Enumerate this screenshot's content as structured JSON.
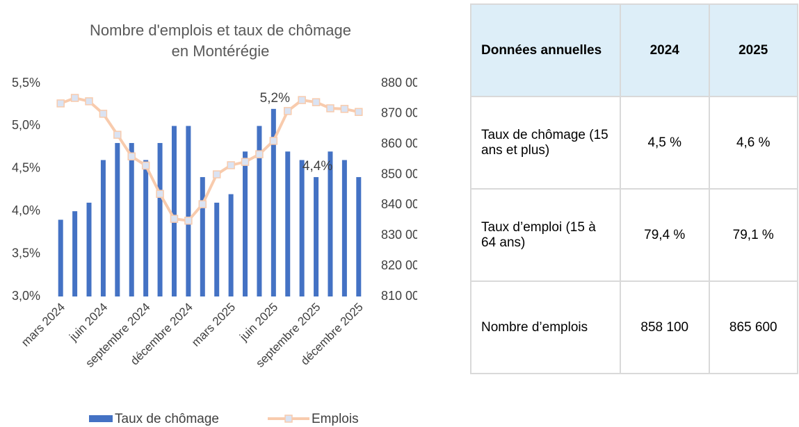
{
  "chart_data": {
    "type": "bar_line",
    "title": [
      "Nombre d'emplois et taux de chômage",
      "en Montérégie"
    ],
    "categories": [
      "mars 2024",
      null,
      null,
      "juin 2024",
      null,
      null,
      "septembre 2024",
      null,
      null,
      "décembre 2024",
      null,
      null,
      "mars 2025",
      null,
      null,
      "juin 2025",
      null,
      null,
      "septembre 2025",
      null,
      null,
      "décembre 2025"
    ],
    "series": [
      {
        "name": "Taux de chômage",
        "type": "bar",
        "color": "#4472c4",
        "values": [
          3.9,
          4.0,
          4.1,
          4.6,
          4.8,
          4.8,
          4.6,
          4.8,
          5.0,
          5.0,
          4.4,
          4.1,
          4.2,
          4.7,
          5.0,
          5.2,
          4.7,
          4.6,
          4.4,
          4.7,
          4.6,
          4.4
        ],
        "value_labels": [
          null,
          null,
          null,
          null,
          null,
          null,
          null,
          null,
          null,
          null,
          null,
          null,
          null,
          null,
          null,
          "5,2%",
          null,
          null,
          "4,4%",
          null,
          null,
          null
        ]
      },
      {
        "name": "Emplois",
        "type": "line",
        "axis": "y2",
        "color": "#f8cbad",
        "marker_color": "#dae3f3",
        "values": [
          873400,
          875200,
          874100,
          870000,
          863100,
          856000,
          853000,
          843700,
          835500,
          834900,
          840300,
          850100,
          853100,
          854200,
          856700,
          861100,
          870900,
          874500,
          873800,
          871800,
          871600,
          870600
        ]
      }
    ],
    "ylim": [
      3.0,
      5.5
    ],
    "yticks": [
      {
        "value": 3.0,
        "label": "3,0%"
      },
      {
        "value": 3.5,
        "label": "3,5%"
      },
      {
        "value": 4.0,
        "label": "4,0%"
      },
      {
        "value": 4.5,
        "label": "4,5%"
      },
      {
        "value": 5.0,
        "label": "5,0%"
      },
      {
        "value": 5.5,
        "label": "5,5%"
      }
    ],
    "y2lim": [
      810000,
      880000
    ],
    "y2ticks": [
      {
        "value": 810000,
        "label": "810 000"
      },
      {
        "value": 820000,
        "label": "820 000"
      },
      {
        "value": 830000,
        "label": "830 000"
      },
      {
        "value": 840000,
        "label": "840 000"
      },
      {
        "value": 850000,
        "label": "850 000"
      },
      {
        "value": 860000,
        "label": "860 000"
      },
      {
        "value": 870000,
        "label": "870 000"
      },
      {
        "value": 880000,
        "label": "880 000"
      }
    ],
    "legend": "bottom"
  },
  "table": {
    "header": [
      "Données annuelles",
      "2024",
      "2025"
    ],
    "rows": [
      [
        "Taux de chômage (15 ans et plus)",
        "4,5 %",
        "4,6 %"
      ],
      [
        "Taux d’emploi (15 à 64 ans)",
        "79,4 %",
        "79,1 %"
      ],
      [
        "Nombre d’emplois",
        "858 100",
        "865 600"
      ]
    ]
  }
}
